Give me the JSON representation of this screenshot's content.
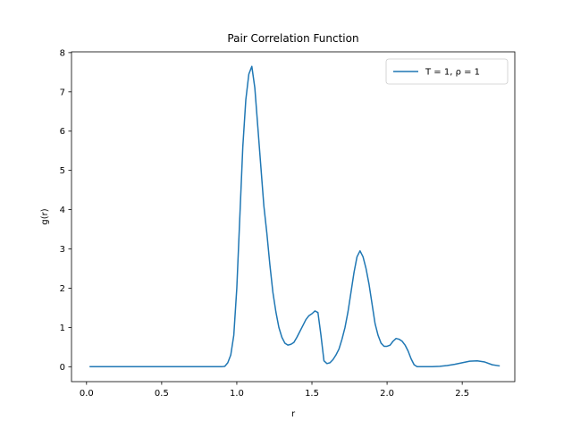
{
  "chart_data": {
    "type": "line",
    "title": "Pair Correlation Function",
    "xlabel": "r",
    "ylabel": "g(r)",
    "xlim": [
      -0.1,
      2.85
    ],
    "ylim": [
      -0.38,
      8.02
    ],
    "xticks": [
      0.0,
      0.5,
      1.0,
      1.5,
      2.0,
      2.5
    ],
    "xtick_labels": [
      "0.0",
      "0.5",
      "1.0",
      "1.5",
      "2.0",
      "2.5"
    ],
    "yticks": [
      0,
      1,
      2,
      3,
      4,
      5,
      6,
      7,
      8
    ],
    "ytick_labels": [
      "0",
      "1",
      "2",
      "3",
      "4",
      "5",
      "6",
      "7",
      "8"
    ],
    "grid": false,
    "legend_position": "top-right",
    "series": [
      {
        "name": "T = 1, ρ = 1",
        "color": "#1f77b4",
        "x": [
          0.02,
          0.1,
          0.2,
          0.3,
          0.4,
          0.5,
          0.6,
          0.7,
          0.8,
          0.9,
          0.92,
          0.94,
          0.96,
          0.98,
          1.0,
          1.02,
          1.04,
          1.06,
          1.08,
          1.1,
          1.12,
          1.14,
          1.16,
          1.18,
          1.2,
          1.22,
          1.24,
          1.26,
          1.28,
          1.3,
          1.32,
          1.34,
          1.36,
          1.38,
          1.4,
          1.42,
          1.44,
          1.46,
          1.48,
          1.5,
          1.52,
          1.54,
          1.56,
          1.58,
          1.6,
          1.62,
          1.64,
          1.66,
          1.68,
          1.7,
          1.72,
          1.74,
          1.76,
          1.78,
          1.8,
          1.82,
          1.84,
          1.86,
          1.88,
          1.9,
          1.92,
          1.94,
          1.96,
          1.98,
          2.0,
          2.02,
          2.04,
          2.06,
          2.08,
          2.1,
          2.12,
          2.14,
          2.16,
          2.18,
          2.2,
          2.22,
          2.24,
          2.26,
          2.28,
          2.3,
          2.35,
          2.4,
          2.45,
          2.5,
          2.55,
          2.6,
          2.65,
          2.7,
          2.75
        ],
        "y": [
          0.0,
          0.0,
          0.0,
          0.0,
          0.0,
          0.0,
          0.0,
          0.0,
          0.0,
          0.0,
          0.01,
          0.1,
          0.3,
          0.8,
          2.0,
          3.8,
          5.6,
          6.8,
          7.45,
          7.65,
          7.1,
          6.1,
          5.1,
          4.1,
          3.4,
          2.6,
          1.9,
          1.4,
          1.0,
          0.75,
          0.6,
          0.55,
          0.57,
          0.62,
          0.75,
          0.9,
          1.05,
          1.2,
          1.3,
          1.35,
          1.42,
          1.38,
          0.8,
          0.15,
          0.08,
          0.1,
          0.18,
          0.3,
          0.45,
          0.7,
          1.0,
          1.4,
          1.9,
          2.4,
          2.8,
          2.95,
          2.8,
          2.5,
          2.1,
          1.6,
          1.1,
          0.8,
          0.6,
          0.52,
          0.52,
          0.55,
          0.65,
          0.72,
          0.7,
          0.65,
          0.55,
          0.4,
          0.2,
          0.05,
          0.0,
          0.0,
          0.0,
          0.0,
          0.0,
          0.0,
          0.01,
          0.03,
          0.06,
          0.1,
          0.14,
          0.15,
          0.12,
          0.05,
          0.02
        ]
      }
    ]
  }
}
